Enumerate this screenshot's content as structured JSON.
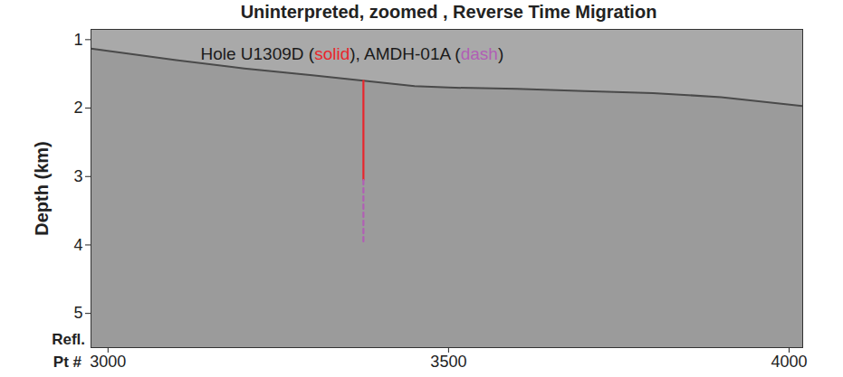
{
  "chart_data": {
    "type": "line",
    "title": "Uninterpreted, zoomed , Reverse Time Migration",
    "xlabel": "Refl. Pt #",
    "ylabel": "Depth (km)",
    "xlim": [
      2975,
      4020
    ],
    "ylim": [
      0.85,
      5.5
    ],
    "xticks": [
      3000,
      3500,
      4000
    ],
    "yticks": [
      1,
      2,
      3,
      4,
      5
    ],
    "annotation": [
      {
        "text": "Hole U1309D ("
      },
      {
        "text": "solid",
        "color": "#e8262d"
      },
      {
        "text": "), AMDH-01A ("
      },
      {
        "text": "dash",
        "color": "#b15fb5"
      },
      {
        "text": ")"
      }
    ],
    "series": [
      {
        "color": "#4a4a4a",
        "line_style": "solid",
        "x": [
          2975,
          3100,
          3200,
          3300,
          3375,
          3450,
          3500,
          3600,
          3700,
          3800,
          3900,
          4020
        ],
        "values": [
          1.13,
          1.3,
          1.42,
          1.52,
          1.6,
          1.68,
          1.7,
          1.72,
          1.75,
          1.78,
          1.84,
          1.97
        ]
      },
      {
        "name": "Hole U1309D",
        "color": "#e8262d",
        "line_style": "solid",
        "x": [
          3375,
          3375
        ],
        "values": [
          1.6,
          3.05
        ]
      },
      {
        "name": "AMDH-01A",
        "color": "#b15fb5",
        "line_style": "dash",
        "x": [
          3375,
          3375
        ],
        "values": [
          3.05,
          3.95
        ]
      }
    ]
  }
}
